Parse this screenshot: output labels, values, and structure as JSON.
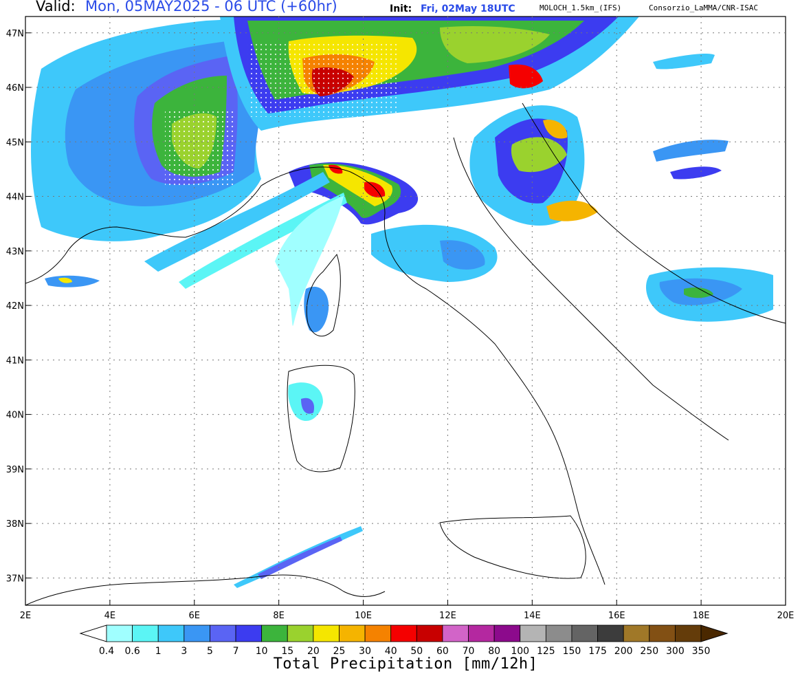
{
  "header": {
    "valid_label": "Valid:",
    "valid_value": "Mon, 05MAY2025 - 06 UTC (+60hr)",
    "init_label": "Init:",
    "init_value": "Fri, 02May 18UTC",
    "model": "MOLOCH_1.5km_(IFS)",
    "institution": "Consorzio_LaMMA/CNR-ISAC"
  },
  "map": {
    "lon_range": [
      2,
      20
    ],
    "lat_range": [
      36.5,
      47.3
    ],
    "lon_ticks": [
      "2E",
      "4E",
      "6E",
      "8E",
      "10E",
      "12E",
      "14E",
      "16E",
      "18E",
      "20E"
    ],
    "lat_ticks": [
      "37N",
      "38N",
      "39N",
      "40N",
      "41N",
      "42N",
      "43N",
      "44N",
      "45N",
      "46N",
      "47N"
    ],
    "gridlines": "dotted",
    "ocean_color": "#ffffff",
    "coastline_color": "#000000",
    "hatching_note_color": "#ffffff"
  },
  "colorbar": {
    "title": "Total Precipitation [mm/12h]",
    "labels": [
      "0.4",
      "0.6",
      "1",
      "3",
      "5",
      "7",
      "10",
      "15",
      "20",
      "25",
      "30",
      "40",
      "50",
      "60",
      "70",
      "80",
      "100",
      "125",
      "150",
      "175",
      "200",
      "250",
      "300",
      "350"
    ],
    "colors": [
      "#a0ffff",
      "#5bf5f5",
      "#3ec8fa",
      "#3a96f4",
      "#5a64f4",
      "#3c3cf0",
      "#3cb43c",
      "#9ad22e",
      "#f5e600",
      "#f5b400",
      "#f58200",
      "#f50000",
      "#c80000",
      "#d264c8",
      "#b428a0",
      "#8c0a8c",
      "#b4b4b4",
      "#8c8c8c",
      "#646464",
      "#3c3c3c",
      "#a07828",
      "#825014",
      "#643c0a"
    ],
    "under_color": "#ffffff",
    "over_color": "#4a2800"
  }
}
